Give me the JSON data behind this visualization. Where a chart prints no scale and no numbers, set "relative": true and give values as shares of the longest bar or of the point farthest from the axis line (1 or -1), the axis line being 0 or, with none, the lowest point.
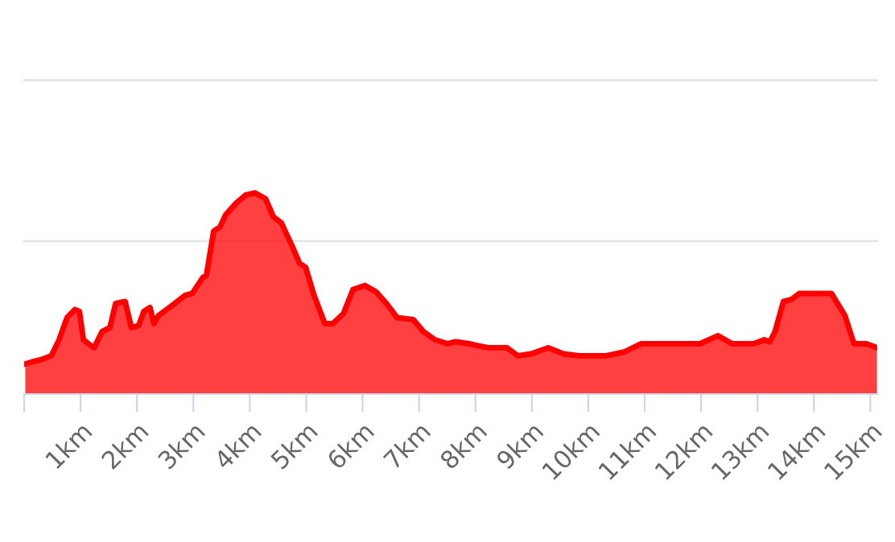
{
  "chart_data": {
    "type": "area",
    "relative": true,
    "ref_lines": [
      {
        "axis": "y",
        "value": 0.76,
        "label": null,
        "color": "#e6e6e6"
      },
      {
        "axis": "y",
        "value": 1.56,
        "label": null,
        "color": "#e6e6e6"
      }
    ],
    "x": [
      0.02,
      0.14,
      0.29,
      0.48,
      0.62,
      0.76,
      0.9,
      0.98,
      1.05,
      1.14,
      1.24,
      1.38,
      1.52,
      1.62,
      1.79,
      1.9,
      2.03,
      2.12,
      2.23,
      2.3,
      2.38,
      2.62,
      2.85,
      2.98,
      3.17,
      3.23,
      3.36,
      3.47,
      3.57,
      3.76,
      3.93,
      4.09,
      4.28,
      4.42,
      4.56,
      4.76,
      4.88,
      4.99,
      5.14,
      5.33,
      5.47,
      5.66,
      5.83,
      6.04,
      6.23,
      6.42,
      6.61,
      6.9,
      7.08,
      7.28,
      7.51,
      7.65,
      7.89,
      8.04,
      8.23,
      8.56,
      8.75,
      8.99,
      9.29,
      9.56,
      9.84,
      10.32,
      10.65,
      10.94,
      11.36,
      11.55,
      11.98,
      12.3,
      12.55,
      12.93,
      13.12,
      13.22,
      13.31,
      13.46,
      13.6,
      13.74,
      14.03,
      14.31,
      14.55,
      14.71,
      14.93,
      15.12
    ],
    "series": [
      {
        "color": "#ff0000",
        "values": [
          0.15,
          0.16,
          0.17,
          0.19,
          0.27,
          0.38,
          0.42,
          0.41,
          0.27,
          0.25,
          0.23,
          0.31,
          0.33,
          0.45,
          0.46,
          0.33,
          0.34,
          0.41,
          0.43,
          0.35,
          0.39,
          0.44,
          0.49,
          0.5,
          0.58,
          0.59,
          0.81,
          0.83,
          0.89,
          0.95,
          0.99,
          1.0,
          0.97,
          0.88,
          0.85,
          0.73,
          0.65,
          0.63,
          0.49,
          0.35,
          0.35,
          0.4,
          0.52,
          0.54,
          0.51,
          0.45,
          0.38,
          0.37,
          0.31,
          0.27,
          0.25,
          0.26,
          0.25,
          0.24,
          0.23,
          0.23,
          0.19,
          0.2,
          0.23,
          0.2,
          0.19,
          0.19,
          0.21,
          0.25,
          0.25,
          0.25,
          0.25,
          0.29,
          0.25,
          0.25,
          0.27,
          0.26,
          0.31,
          0.46,
          0.47,
          0.5,
          0.5,
          0.5,
          0.39,
          0.25,
          0.25,
          0.23
        ]
      }
    ],
    "xlim": [
      0,
      15.12
    ],
    "xticks": [
      {
        "value": 0,
        "label": null
      },
      {
        "value": 1,
        "label": "1km"
      },
      {
        "value": 2,
        "label": "2km"
      },
      {
        "value": 3,
        "label": "3km"
      },
      {
        "value": 4,
        "label": "4km"
      },
      {
        "value": 5,
        "label": "5km"
      },
      {
        "value": 6,
        "label": "6km"
      },
      {
        "value": 7,
        "label": "7km"
      },
      {
        "value": 8,
        "label": "8km"
      },
      {
        "value": 9,
        "label": "9km"
      },
      {
        "value": 10,
        "label": "10km"
      },
      {
        "value": 11,
        "label": "11km"
      },
      {
        "value": 12,
        "label": "12km"
      },
      {
        "value": 13,
        "label": "13km"
      },
      {
        "value": 14,
        "label": "14km"
      },
      {
        "value": 15,
        "label": "15km"
      }
    ],
    "tick_labels": "x"
  }
}
